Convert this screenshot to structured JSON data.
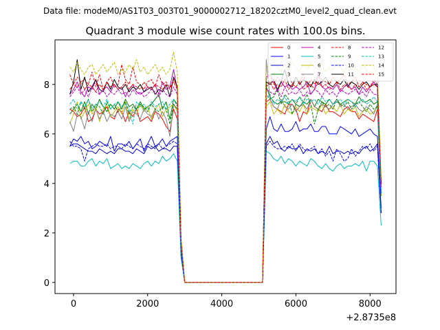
{
  "suptitle": "Data file: modeM0/AS1T03_003T01_9000002712_18202cztM0_level2_quad_clean.evt",
  "chart_data": {
    "type": "line",
    "title": "Quadrant 3 module wise count rates with 100.0s bins.",
    "xlabel": "",
    "ylabel": "",
    "x_offset_label": "+2.8735e8",
    "xlim": [
      -500,
      8700
    ],
    "ylim": [
      -0.45,
      9.8
    ],
    "x_ticks": [
      0,
      2000,
      4000,
      6000,
      8000
    ],
    "x_tick_labels": [
      "0",
      "2000",
      "4000",
      "6000",
      "8000"
    ],
    "y_ticks": [
      0,
      2,
      4,
      6,
      8
    ],
    "y_tick_labels": [
      "0",
      "2",
      "4",
      "6",
      "8"
    ],
    "legend_position": "top-right",
    "x": [
      -100,
      0,
      100,
      200,
      300,
      400,
      500,
      600,
      700,
      800,
      900,
      1000,
      1100,
      1200,
      1300,
      1400,
      1500,
      1600,
      1700,
      1800,
      1900,
      2000,
      2100,
      2200,
      2300,
      2400,
      2500,
      2600,
      2700,
      2800,
      2900,
      3000,
      5100,
      5200,
      5300,
      5400,
      5500,
      5600,
      5700,
      5800,
      5900,
      6000,
      6100,
      6200,
      6300,
      6400,
      6500,
      6600,
      6700,
      6800,
      6900,
      7000,
      7100,
      7200,
      7300,
      7400,
      7500,
      7600,
      7700,
      7800,
      7900,
      8000,
      8100,
      8200,
      8300
    ],
    "series": [
      {
        "name": "0",
        "color": "#ff0000",
        "dash": "solid",
        "values": [
          7.0,
          6.9,
          6.7,
          6.8,
          7.1,
          6.5,
          6.6,
          7.0,
          6.8,
          6.9,
          7.1,
          6.7,
          6.6,
          7.0,
          6.9,
          6.5,
          6.9,
          6.7,
          7.0,
          6.5,
          6.6,
          6.7,
          6.5,
          6.9,
          6.8,
          6.6,
          6.3,
          6.1,
          7.0,
          6.6,
          1.5,
          0.0,
          0.0,
          7.3,
          7.4,
          7.1,
          7.0,
          6.9,
          6.8,
          7.2,
          7.2,
          7.0,
          6.5,
          6.9,
          6.8,
          7.4,
          7.1,
          7.0,
          6.9,
          7.2,
          6.9,
          6.9,
          6.8,
          6.7,
          7.0,
          7.1,
          6.9,
          6.9,
          6.6,
          6.8,
          6.7,
          6.6,
          6.5,
          7.0,
          3.5
        ]
      },
      {
        "name": "1",
        "color": "#0000ff",
        "dash": "solid",
        "values": [
          5.5,
          5.8,
          5.7,
          5.9,
          5.6,
          5.7,
          5.4,
          5.5,
          5.7,
          5.6,
          5.5,
          5.9,
          5.3,
          5.6,
          5.6,
          5.5,
          5.7,
          5.4,
          5.6,
          5.8,
          5.3,
          5.6,
          5.9,
          5.5,
          5.6,
          5.8,
          5.5,
          5.7,
          5.8,
          5.9,
          1.2,
          0.0,
          0.0,
          6.2,
          6.7,
          6.2,
          6.1,
          6.4,
          6.1,
          6.1,
          6.2,
          6.5,
          6.1,
          6.2,
          6.2,
          6.4,
          6.1,
          6.1,
          6.3,
          6.3,
          6.0,
          6.0,
          6.0,
          6.3,
          6.2,
          6.1,
          6.0,
          6.2,
          5.9,
          6.0,
          6.1,
          6.2,
          6.0,
          5.9,
          3.0
        ]
      },
      {
        "name": "2",
        "color": "#0000cc",
        "dash": "solid",
        "values": [
          5.5,
          5.6,
          5.6,
          5.5,
          5.4,
          5.3,
          5.3,
          5.2,
          5.4,
          5.3,
          5.2,
          5.3,
          5.2,
          5.4,
          5.4,
          5.3,
          5.3,
          5.2,
          5.4,
          5.3,
          5.2,
          5.5,
          5.4,
          5.5,
          5.3,
          5.4,
          5.4,
          5.3,
          5.5,
          5.5,
          1.2,
          0.0,
          0.0,
          5.6,
          5.9,
          5.6,
          5.7,
          5.4,
          5.3,
          5.5,
          5.4,
          5.4,
          5.5,
          5.2,
          5.4,
          5.3,
          5.4,
          5.2,
          5.3,
          5.2,
          5.5,
          5.2,
          5.3,
          5.3,
          5.2,
          5.3,
          5.2,
          5.3,
          5.2,
          5.4,
          5.5,
          5.3,
          5.4,
          5.6,
          2.8
        ]
      },
      {
        "name": "3",
        "color": "#008000",
        "dash": "solid",
        "values": [
          6.8,
          7.0,
          7.2,
          6.9,
          7.3,
          6.8,
          7.2,
          7.0,
          7.4,
          7.1,
          6.9,
          7.2,
          7.0,
          7.3,
          7.0,
          7.4,
          7.1,
          7.2,
          7.0,
          7.3,
          7.0,
          7.1,
          7.2,
          7.4,
          7.6,
          7.0,
          7.3,
          6.6,
          7.4,
          7.2,
          1.6,
          0.0,
          0.0,
          7.9,
          7.5,
          7.3,
          7.2,
          7.3,
          7.3,
          7.2,
          7.4,
          7.2,
          7.1,
          7.3,
          7.2,
          7.4,
          7.1,
          7.4,
          7.3,
          7.2,
          7.4,
          7.2,
          7.3,
          7.2,
          7.3,
          7.4,
          7.3,
          7.2,
          7.5,
          7.3,
          7.3,
          7.4,
          7.2,
          7.3,
          3.6
        ]
      },
      {
        "name": "4",
        "color": "#bf00bf",
        "dash": "solid",
        "values": [
          7.6,
          7.8,
          8.1,
          7.7,
          7.5,
          7.9,
          7.8,
          8.2,
          7.6,
          7.8,
          7.9,
          7.7,
          8.0,
          7.8,
          7.9,
          7.5,
          7.8,
          8.0,
          7.7,
          7.6,
          7.7,
          7.9,
          7.8,
          8.0,
          7.6,
          8.1,
          7.8,
          7.9,
          8.6,
          7.8,
          1.7,
          0.0,
          0.0,
          8.3,
          8.4,
          8.1,
          7.7,
          8.1,
          7.9,
          8.0,
          7.8,
          7.9,
          7.8,
          7.9,
          8.1,
          7.6,
          7.8,
          8.5,
          7.9,
          7.8,
          7.9,
          7.8,
          8.0,
          7.7,
          7.9,
          8.0,
          7.8,
          7.9,
          7.6,
          7.9,
          7.7,
          7.9,
          8.1,
          7.9,
          3.9
        ]
      },
      {
        "name": "5",
        "color": "#00bfbf",
        "dash": "solid",
        "values": [
          4.8,
          4.9,
          4.9,
          4.7,
          4.7,
          4.9,
          5.0,
          4.7,
          4.9,
          4.8,
          5.0,
          4.6,
          4.7,
          4.8,
          4.6,
          4.7,
          4.6,
          4.8,
          4.7,
          4.6,
          4.8,
          4.9,
          4.7,
          4.9,
          4.8,
          5.1,
          4.9,
          5.0,
          5.2,
          4.9,
          1.0,
          0.0,
          0.0,
          5.3,
          5.2,
          5.0,
          4.9,
          5.1,
          4.8,
          5.0,
          4.9,
          4.7,
          4.9,
          4.8,
          4.7,
          5.0,
          4.9,
          4.7,
          4.6,
          4.8,
          4.6,
          4.5,
          4.7,
          4.8,
          4.6,
          4.7,
          4.7,
          4.8,
          4.7,
          4.9,
          4.5,
          4.9,
          4.9,
          4.7,
          2.3
        ]
      },
      {
        "name": "6",
        "color": "#bfbf00",
        "dash": "solid",
        "values": [
          6.4,
          6.8,
          7.3,
          6.6,
          6.9,
          7.2,
          6.8,
          7.1,
          6.5,
          7.0,
          7.2,
          6.7,
          6.9,
          7.1,
          6.8,
          7.3,
          6.6,
          7.0,
          6.8,
          7.2,
          6.9,
          7.1,
          6.6,
          7.0,
          7.2,
          6.7,
          7.0,
          7.1,
          7.2,
          6.9,
          1.5,
          0.0,
          0.0,
          7.1,
          7.3,
          6.8,
          7.0,
          6.8,
          7.2,
          6.9,
          6.8,
          7.1,
          6.9,
          7.2,
          6.8,
          7.1,
          7.0,
          6.9,
          7.2,
          6.8,
          7.0,
          7.1,
          6.9,
          7.2,
          6.8,
          7.0,
          6.9,
          7.1,
          6.7,
          6.9,
          7.0,
          6.8,
          6.9,
          7.1,
          3.5
        ]
      },
      {
        "name": "7",
        "color": "#808080",
        "dash": "solid",
        "values": [
          6.5,
          6.1,
          6.8,
          6.7,
          6.2,
          6.9,
          6.5,
          7.0,
          6.6,
          6.9,
          6.5,
          6.8,
          6.7,
          6.9,
          6.6,
          7.1,
          6.5,
          6.9,
          6.8,
          6.6,
          7.0,
          6.8,
          6.7,
          7.0,
          6.6,
          6.9,
          6.6,
          5.9,
          7.2,
          7.0,
          1.5,
          0.0,
          0.0,
          9.0,
          7.4,
          7.1,
          7.0,
          7.4,
          7.1,
          7.0,
          7.2,
          6.9,
          7.1,
          7.2,
          7.0,
          7.4,
          7.1,
          7.0,
          7.2,
          7.1,
          7.0,
          7.2,
          7.4,
          7.1,
          7.2,
          7.0,
          7.1,
          7.2,
          7.0,
          6.9,
          7.1,
          7.0,
          6.8,
          7.2,
          3.6
        ]
      },
      {
        "name": "8",
        "color": "#ff0000",
        "dash": "dash",
        "values": [
          8.4,
          8.0,
          8.3,
          8.1,
          8.2,
          8.0,
          8.5,
          7.9,
          8.4,
          7.8,
          8.1,
          8.3,
          7.9,
          8.0,
          8.8,
          8.2,
          8.0,
          8.7,
          8.1,
          8.0,
          7.8,
          8.1,
          8.2,
          7.9,
          8.4,
          8.0,
          8.1,
          7.8,
          8.2,
          7.9,
          1.8,
          0.0,
          0.0,
          8.2,
          8.4,
          8.0,
          8.3,
          8.1,
          8.2,
          8.5,
          8.0,
          8.3,
          8.1,
          8.4,
          7.9,
          8.2,
          8.0,
          8.3,
          8.2,
          8.1,
          8.0,
          8.3,
          8.1,
          8.2,
          8.4,
          8.0,
          8.1,
          8.3,
          7.9,
          8.1,
          8.0,
          7.9,
          8.2,
          8.0,
          4.0
        ]
      },
      {
        "name": "9",
        "color": "#008000",
        "dash": "dash",
        "values": [
          7.0,
          7.1,
          6.8,
          7.3,
          7.0,
          7.4,
          6.9,
          7.2,
          7.1,
          6.8,
          7.3,
          7.0,
          7.2,
          6.9,
          7.1,
          7.3,
          6.8,
          7.1,
          7.0,
          7.2,
          7.1,
          6.9,
          7.2,
          7.0,
          6.9,
          7.1,
          7.0,
          6.4,
          7.2,
          7.0,
          1.5,
          0.0,
          0.0,
          7.6,
          7.4,
          7.5,
          7.8,
          7.2,
          7.6,
          7.4,
          6.8,
          7.2,
          7.5,
          7.3,
          7.6,
          7.2,
          6.4,
          7.0,
          7.3,
          7.1,
          7.2,
          7.0,
          7.4,
          7.2,
          7.1,
          7.3,
          7.0,
          7.2,
          7.3,
          7.1,
          6.9,
          7.2,
          7.0,
          7.1,
          3.5
        ]
      },
      {
        "name": "10",
        "color": "#0000ff",
        "dash": "dash",
        "values": [
          5.7,
          5.5,
          5.5,
          5.4,
          4.9,
          5.4,
          5.5,
          5.6,
          5.5,
          5.5,
          5.6,
          5.4,
          5.5,
          5.5,
          5.4,
          5.6,
          5.5,
          5.4,
          5.6,
          5.5,
          5.4,
          5.6,
          5.5,
          5.4,
          5.6,
          5.4,
          5.5,
          5.6,
          5.7,
          5.6,
          1.2,
          0.0,
          0.0,
          5.5,
          5.7,
          5.5,
          5.4,
          5.4,
          5.5,
          5.4,
          5.6,
          5.3,
          5.6,
          5.4,
          5.3,
          5.4,
          5.5,
          5.2,
          5.4,
          5.1,
          5.3,
          4.9,
          5.4,
          5.2,
          4.9,
          5.0,
          5.4,
          5.1,
          5.3,
          5.5,
          5.4,
          5.6,
          5.3,
          5.5,
          2.8
        ]
      },
      {
        "name": "11",
        "color": "#000000",
        "dash": "solid",
        "values": [
          7.6,
          8.1,
          9.0,
          7.8,
          8.3,
          7.7,
          7.9,
          8.2,
          7.8,
          7.7,
          8.1,
          7.8,
          8.2,
          7.9,
          7.8,
          8.0,
          7.7,
          7.9,
          7.8,
          8.0,
          7.7,
          7.8,
          7.9,
          7.6,
          7.8,
          7.7,
          8.0,
          7.5,
          8.3,
          7.9,
          1.7,
          0.0,
          0.0,
          8.1,
          8.0,
          8.2,
          7.8,
          8.1,
          8.6,
          8.0,
          7.9,
          8.3,
          8.0,
          8.2,
          8.1,
          7.9,
          8.2,
          8.0,
          8.1,
          8.3,
          8.0,
          7.9,
          8.1,
          8.0,
          8.2,
          7.9,
          8.1,
          8.0,
          7.8,
          8.0,
          8.1,
          7.9,
          8.0,
          8.0,
          4.0
        ]
      },
      {
        "name": "12",
        "color": "#bf00bf",
        "dash": "dash",
        "values": [
          7.5,
          7.7,
          7.9,
          7.6,
          7.8,
          7.5,
          7.9,
          7.7,
          7.6,
          7.8,
          7.5,
          7.7,
          7.6,
          7.8,
          7.6,
          7.7,
          7.5,
          7.8,
          7.6,
          7.7,
          7.5,
          7.6,
          7.8,
          7.7,
          7.5,
          7.8,
          7.6,
          7.5,
          7.9,
          7.6,
          1.6,
          0.0,
          0.0,
          7.8,
          7.7,
          7.6,
          7.8,
          7.5,
          7.9,
          7.6,
          7.7,
          7.6,
          7.8,
          7.5,
          7.7,
          7.6,
          7.8,
          7.7,
          7.5,
          7.8,
          7.6,
          7.7,
          7.5,
          7.8,
          7.7,
          7.6,
          7.7,
          7.8,
          7.6,
          7.7,
          7.5,
          7.8,
          7.6,
          7.6,
          3.8
        ]
      },
      {
        "name": "13",
        "color": "#00bfbf",
        "dash": "dash",
        "values": [
          7.2,
          7.4,
          7.0,
          7.3,
          7.1,
          7.4,
          7.0,
          7.2,
          7.3,
          7.1,
          7.4,
          7.0,
          7.2,
          7.3,
          7.1,
          7.2,
          7.0,
          6.4,
          7.3,
          7.1,
          7.2,
          7.0,
          7.3,
          7.1,
          7.2,
          7.3,
          7.0,
          7.2,
          7.4,
          7.1,
          1.5,
          0.0,
          0.0,
          7.4,
          7.6,
          7.2,
          7.4,
          7.3,
          7.5,
          7.2,
          7.4,
          7.3,
          7.5,
          7.2,
          7.4,
          7.3,
          7.4,
          7.2,
          7.5,
          7.3,
          7.4,
          7.2,
          7.3,
          7.4,
          7.2,
          7.4,
          7.3,
          7.1,
          7.3,
          7.4,
          7.2,
          7.3,
          7.5,
          7.3,
          3.6
        ]
      },
      {
        "name": "14",
        "color": "#bfbf00",
        "dash": "dash",
        "values": [
          8.7,
          8.5,
          8.9,
          8.6,
          8.4,
          8.7,
          8.8,
          8.4,
          8.6,
          8.8,
          8.5,
          8.7,
          8.9,
          8.4,
          8.6,
          8.5,
          8.8,
          8.6,
          9.0,
          8.5,
          8.7,
          8.4,
          8.6,
          8.8,
          8.5,
          8.7,
          8.4,
          8.6,
          9.3,
          8.5,
          1.9,
          0.0,
          0.0,
          8.8,
          8.6,
          8.9,
          8.7,
          8.5,
          8.8,
          8.6,
          8.9,
          8.7,
          8.5,
          8.8,
          8.6,
          8.9,
          8.7,
          8.6,
          8.8,
          8.5,
          8.7,
          8.6,
          8.8,
          8.7,
          8.5,
          8.8,
          8.6,
          8.7,
          8.5,
          8.8,
          8.6,
          8.4,
          8.7,
          8.5,
          4.2
        ]
      },
      {
        "name": "15",
        "color": "#ff0000",
        "dash": "dash",
        "values": [
          7.8,
          8.0,
          7.9,
          8.1,
          7.8,
          8.0,
          7.9,
          7.7,
          8.0,
          7.8,
          8.1,
          7.9,
          8.0,
          7.8,
          7.9,
          8.1,
          7.8,
          8.0,
          7.9,
          7.8,
          8.1,
          7.9,
          7.8,
          8.0,
          7.9,
          7.8,
          8.0,
          7.9,
          8.1,
          7.8,
          1.7,
          0.0,
          0.0,
          7.9,
          8.1,
          7.8,
          8.0,
          7.9,
          8.2,
          7.8,
          8.0,
          7.9,
          8.1,
          7.8,
          7.9,
          8.0,
          7.8,
          8.1,
          7.9,
          8.0,
          7.8,
          7.9,
          8.1,
          7.8,
          8.0,
          7.9,
          7.8,
          8.0,
          7.9,
          8.1,
          7.8,
          7.9,
          8.0,
          7.9,
          3.9
        ]
      }
    ]
  }
}
